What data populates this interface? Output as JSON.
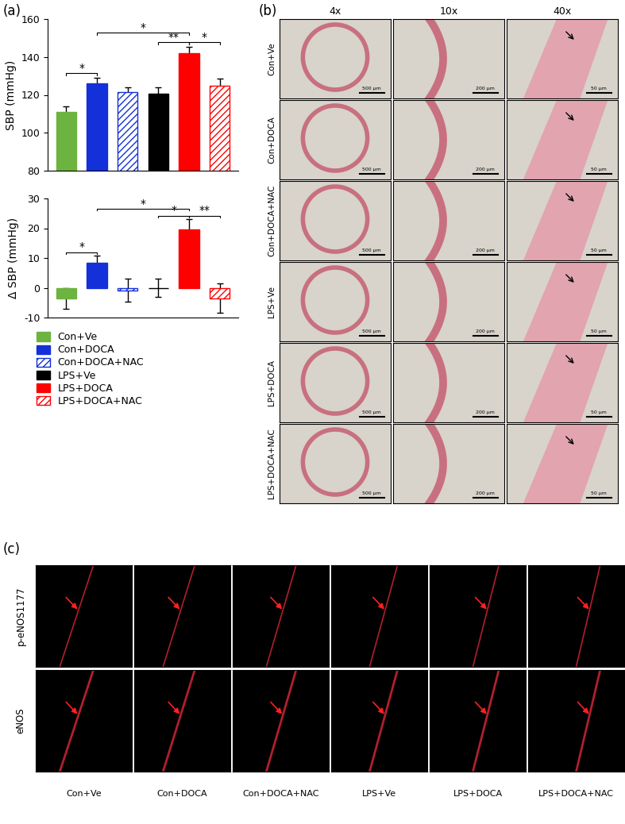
{
  "panel_labels": [
    "(a)",
    "(b)",
    "(c)"
  ],
  "chart_data": [
    {
      "type": "bar",
      "ylabel": "SBP (mmHg)",
      "categories": [
        "Con+Ve",
        "Con+DOCA",
        "Con+DOCA+NAC",
        "LPS+Ve",
        "LPS+DOCA",
        "LPS+DOCA+NAC"
      ],
      "values": [
        111,
        126,
        121.5,
        120.5,
        142,
        125
      ],
      "errors": [
        3,
        3,
        2.5,
        3.5,
        3.5,
        3.5
      ],
      "colors": [
        "#6db33f",
        "#1430d8",
        "#1430d8",
        "#000000",
        "#ff0000",
        "#ff0000"
      ],
      "ylim": [
        80,
        160
      ],
      "yticks": [
        80,
        100,
        120,
        140,
        160
      ],
      "tick_labels": "y",
      "annotations": [
        {
          "between": [
            "Con+Ve",
            "Con+DOCA"
          ],
          "label": "*"
        },
        {
          "between": [
            "Con+DOCA",
            "LPS+DOCA"
          ],
          "label": "*"
        },
        {
          "between": [
            "LPS+Ve",
            "LPS+DOCA"
          ],
          "label": "**"
        },
        {
          "between": [
            "LPS+DOCA",
            "LPS+DOCA+NAC"
          ],
          "label": "*"
        }
      ]
    },
    {
      "type": "bar",
      "ylabel": "Δ SBP (mmHg)",
      "categories": [
        "Con+Ve",
        "Con+DOCA",
        "Con+DOCA+NAC",
        "LPS+Ve",
        "LPS+DOCA",
        "LPS+DOCA+NAC"
      ],
      "values": [
        -3.5,
        8.5,
        -0.8,
        0,
        19.5,
        -3.5
      ],
      "errors": [
        3.5,
        2.3,
        3.8,
        3,
        3.5,
        5
      ],
      "colors": [
        "#6db33f",
        "#1430d8",
        "#1430d8",
        "#000000",
        "#ff0000",
        "#ff0000"
      ],
      "ylim": [
        -10,
        30
      ],
      "yticks": [
        -10,
        0,
        10,
        20,
        30
      ],
      "tick_labels": "y",
      "legend": "upper left",
      "annotations": [
        {
          "between": [
            "Con+Ve",
            "Con+DOCA"
          ],
          "label": "*"
        },
        {
          "between": [
            "Con+DOCA",
            "LPS+DOCA"
          ],
          "label": "*"
        },
        {
          "between": [
            "LPS+Ve",
            "LPS+DOCA"
          ],
          "label": "*"
        },
        {
          "between": [
            "LPS+DOCA",
            "LPS+DOCA+NAC"
          ],
          "label": "**"
        }
      ]
    }
  ],
  "histology": {
    "columns": [
      {
        "label": "4x",
        "scale_bar": "500 μm"
      },
      {
        "label": "10x",
        "scale_bar": "200 μm"
      },
      {
        "label": "40x",
        "scale_bar": "50 μm"
      }
    ],
    "rows": [
      "Con+Ve",
      "Con+DOCA",
      "Con+DOCA+NAC",
      "LPS+Ve",
      "LPS+DOCA",
      "LPS+DOCA+NAC"
    ]
  },
  "immunofluorescence": {
    "rows": [
      "p-eNOS1177",
      "eNOS"
    ],
    "columns": [
      "Con+Ve",
      "Con+DOCA",
      "Con+DOCA+NAC",
      "LPS+Ve",
      "LPS+DOCA",
      "LPS+DOCA+NAC"
    ]
  }
}
